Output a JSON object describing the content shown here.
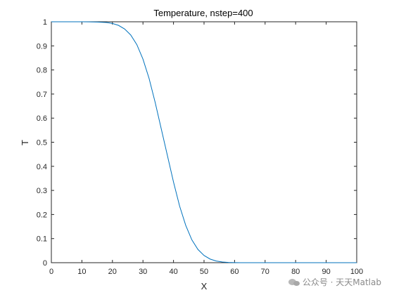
{
  "chart_data": {
    "type": "line",
    "title": "Temperature, nstep=400",
    "xlabel": "X",
    "ylabel": "T",
    "xlim": [
      0,
      100
    ],
    "ylim": [
      0,
      1
    ],
    "xticks": [
      0,
      10,
      20,
      30,
      40,
      50,
      60,
      70,
      80,
      90,
      100
    ],
    "yticks": [
      0,
      0.1,
      0.2,
      0.3,
      0.4,
      0.5,
      0.6,
      0.7,
      0.8,
      0.9,
      1
    ],
    "xtick_labels": [
      "0",
      "10",
      "20",
      "30",
      "40",
      "50",
      "60",
      "70",
      "80",
      "90",
      "100"
    ],
    "ytick_labels": [
      "0",
      "0.1",
      "0.2",
      "0.3",
      "0.4",
      "0.5",
      "0.6",
      "0.7",
      "0.8",
      "0.9",
      "1"
    ],
    "grid": false,
    "line_color": "#0072BD",
    "series": [
      {
        "x": [
          0,
          5,
          10,
          15,
          18,
          20,
          22,
          24,
          26,
          28,
          30,
          32,
          34,
          36,
          38,
          40,
          42,
          44,
          46,
          48,
          50,
          52,
          54,
          56,
          58,
          60,
          62,
          64,
          66,
          70,
          80,
          90,
          100
        ],
        "values": [
          1,
          1,
          1,
          0.999,
          0.997,
          0.993,
          0.985,
          0.97,
          0.945,
          0.905,
          0.845,
          0.765,
          0.665,
          0.555,
          0.445,
          0.335,
          0.235,
          0.155,
          0.095,
          0.055,
          0.03,
          0.015,
          0.007,
          0.003,
          0.001,
          0.0004,
          0.0001,
          0,
          0,
          0,
          0,
          0,
          0
        ]
      }
    ]
  },
  "watermark": {
    "icon": "wechat-icon",
    "text": "公众号 · 天天Matlab"
  }
}
